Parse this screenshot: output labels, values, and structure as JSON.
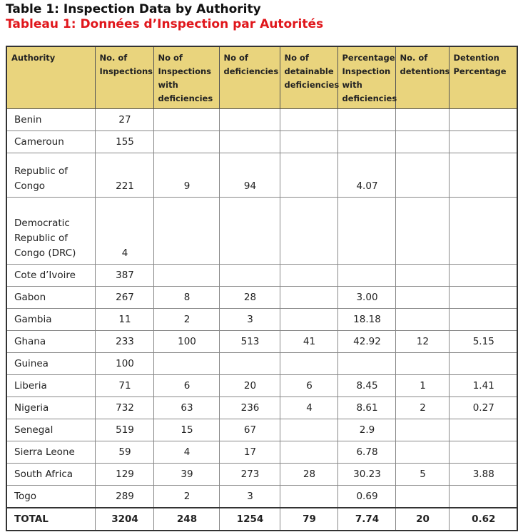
{
  "header": {
    "title": "Table 1: Inspection Data by Authority",
    "subtitle": "Tableau 1: Données d’Inspection par Autorités"
  },
  "table": {
    "columns": [
      "Authority",
      "No. of Inspections",
      "No of Inspections with deficiencies",
      "No of deficiencies",
      "No of detainable deficiencies",
      "Percentage Inspection with deficiencies",
      "No. of detentions",
      "Detention Percentage"
    ],
    "rows": [
      [
        "Benin",
        "27",
        null,
        null,
        null,
        null,
        null,
        null
      ],
      [
        "Cameroun",
        "155",
        null,
        null,
        null,
        null,
        null,
        null
      ],
      [
        "Republic of Congo",
        "221",
        "9",
        "94",
        null,
        "4.07",
        null,
        null
      ],
      [
        "Democratic Republic of Congo (DRC)",
        "4",
        null,
        null,
        null,
        null,
        null,
        null
      ],
      [
        "Cote d’Ivoire",
        "387",
        null,
        null,
        null,
        null,
        null,
        null
      ],
      [
        "Gabon",
        "267",
        "8",
        "28",
        null,
        "3.00",
        null,
        null
      ],
      [
        "Gambia",
        "11",
        "2",
        "3",
        null,
        "18.18",
        null,
        null
      ],
      [
        "Ghana",
        "233",
        "100",
        "513",
        "41",
        "42.92",
        "12",
        "5.15"
      ],
      [
        "Guinea",
        "100",
        null,
        null,
        null,
        null,
        null,
        null
      ],
      [
        "Liberia",
        "71",
        "6",
        "20",
        "6",
        "8.45",
        "1",
        "1.41"
      ],
      [
        "Nigeria",
        "732",
        "63",
        "236",
        "4",
        "8.61",
        "2",
        "0.27"
      ],
      [
        "Senegal",
        "519",
        "15",
        "67",
        null,
        "2.9",
        null,
        null
      ],
      [
        "Sierra Leone",
        "59",
        "4",
        "17",
        null,
        "6.78",
        null,
        null
      ],
      [
        "South Africa",
        "129",
        "39",
        "273",
        "28",
        "30.23",
        "5",
        "3.88"
      ],
      [
        "Togo",
        "289",
        "2",
        "3",
        null,
        "0.69",
        null,
        null
      ],
      [
        "TOTAL",
        "3204",
        "248",
        "1254",
        "79",
        "7.74",
        "20",
        "0.62"
      ]
    ]
  }
}
